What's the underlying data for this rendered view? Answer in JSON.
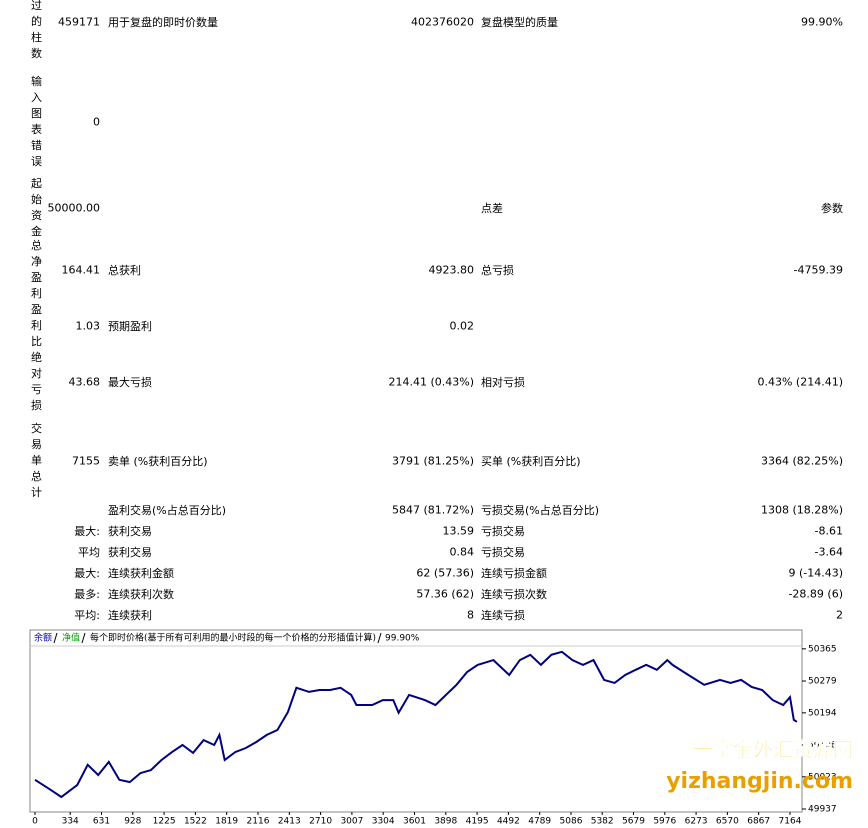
{
  "report": {
    "rows": [
      {
        "label": "试过的柱数",
        "value": "459171",
        "item": "用于复盘的即时价数量",
        "item_value": "402376020",
        "item2": "复盘模型的质量",
        "item2_value": "99.90%"
      },
      {
        "label": "输入图表错误",
        "value": "0"
      },
      {
        "label": "起始资金",
        "value": "50000.00",
        "item2": "点差",
        "item2_value": "参数"
      },
      {
        "label": "总净盈利",
        "value": "164.41",
        "item": "总获利",
        "item_value": "4923.80",
        "item2": "总亏损",
        "item2_value": "-4759.39"
      },
      {
        "label": "盈利比",
        "value": "1.03",
        "item": "预期盈利",
        "item_value": "0.02"
      },
      {
        "label": "绝对亏损",
        "value": "43.68",
        "item": "最大亏损",
        "item_value": "214.41 (0.43%)",
        "item2": "相对亏损",
        "item2_value": "0.43% (214.41)"
      },
      {
        "label": "交易单总计",
        "value": "7155",
        "item": "卖单 (%获利百分比)",
        "item_value": "3791 (81.25%)",
        "item2": "买单 (%获利百分比)",
        "item2_value": "3364 (82.25%)"
      },
      {
        "item": "盈利交易(%占总百分比)",
        "item_value": "5847 (81.72%)",
        "item2": "亏损交易(%占总百分比)",
        "item2_value": "1308 (18.28%)"
      },
      {
        "value": "最大:",
        "item": "获利交易",
        "item_value": "13.59",
        "item2": "亏损交易",
        "item2_value": "-8.61"
      },
      {
        "value": "平均",
        "item": "获利交易",
        "item_value": "0.84",
        "item2": "亏损交易",
        "item2_value": "-3.64"
      },
      {
        "value": "最大:",
        "item": "连续获利金额",
        "item_value": "62 (57.36)",
        "item2": "连续亏损金额",
        "item2_value": "9 (-14.43)"
      },
      {
        "value": "最多:",
        "item": "连续获利次数",
        "item_value": "57.36 (62)",
        "item2": "连续亏损次数",
        "item2_value": "-28.89 (6)"
      },
      {
        "value": "平均:",
        "item": "连续获利",
        "item_value": "8",
        "item2": "连续亏损",
        "item2_value": "2"
      }
    ]
  },
  "chart_data": {
    "type": "line",
    "legend": [
      "余额",
      "净值"
    ],
    "title": "每个即时价格(基于所有可利用的最小时段的每一个价格的分形插值计算)",
    "quality": "99.90%",
    "color": "#000080",
    "x": [
      0,
      150,
      250,
      400,
      500,
      600,
      700,
      800,
      900,
      1000,
      1100,
      1200,
      1300,
      1400,
      1500,
      1600,
      1700,
      1750,
      1800,
      1900,
      2000,
      2100,
      2200,
      2300,
      2400,
      2480,
      2600,
      2700,
      2800,
      2900,
      3000,
      3050,
      3200,
      3300,
      3400,
      3450,
      3550,
      3700,
      3800,
      3900,
      4000,
      4100,
      4200,
      4350,
      4500,
      4600,
      4700,
      4800,
      4900,
      5000,
      5100,
      5200,
      5300,
      5400,
      5500,
      5600,
      5700,
      5800,
      5900,
      6000,
      6050,
      6200,
      6350,
      6500,
      6600,
      6700,
      6800,
      6900,
      7000,
      7100,
      7164,
      7200,
      7230
    ],
    "values": [
      50015,
      49988,
      49969,
      50001,
      50055,
      50028,
      50063,
      50015,
      50009,
      50033,
      50041,
      50068,
      50089,
      50108,
      50087,
      50121,
      50108,
      50135,
      50068,
      50089,
      50100,
      50116,
      50135,
      50148,
      50196,
      50261,
      50250,
      50255,
      50255,
      50261,
      50242,
      50215,
      50215,
      50228,
      50228,
      50194,
      50242,
      50228,
      50215,
      50242,
      50269,
      50303,
      50322,
      50335,
      50295,
      50335,
      50349,
      50322,
      50349,
      50357,
      50335,
      50322,
      50335,
      50282,
      50274,
      50295,
      50309,
      50322,
      50309,
      50335,
      50322,
      50295,
      50269,
      50282,
      50274,
      50282,
      50263,
      50255,
      50228,
      50215,
      50236,
      50175,
      50170
    ],
    "xlim": [
      0,
      7278
    ],
    "ylim": [
      49929,
      50410
    ],
    "xticks": [
      0,
      334,
      631,
      928,
      1225,
      1522,
      1819,
      2116,
      2413,
      2710,
      3007,
      3304,
      3601,
      3898,
      4195,
      4492,
      4789,
      5086,
      5382,
      5679,
      5976,
      6273,
      6570,
      6867,
      7164
    ],
    "yticks": [
      49937,
      50023,
      50108,
      50194,
      50279,
      50365
    ]
  },
  "watermark": {
    "line1": "一掌金外汇资源网",
    "line2": "yizhangjin.com"
  }
}
